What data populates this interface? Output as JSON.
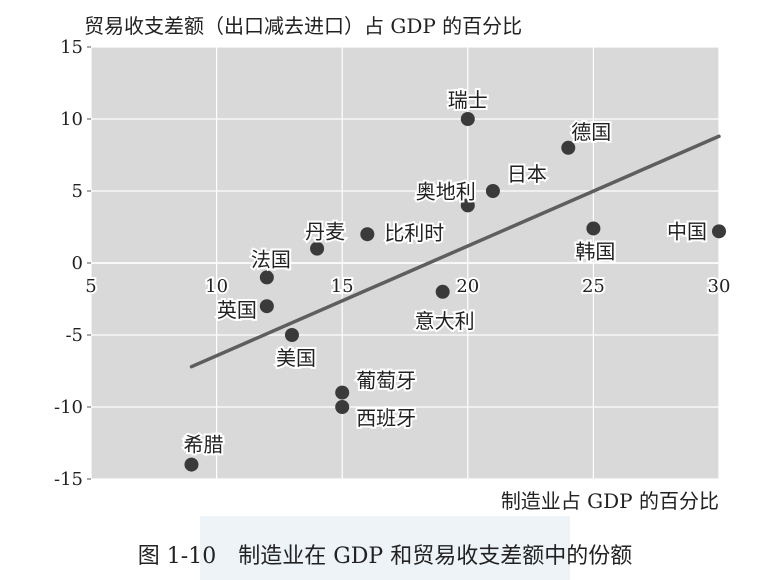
{
  "chart_data": {
    "type": "scatter",
    "title": "",
    "ylabel": "贸易收支差额（出口减去进口）占 GDP 的百分比",
    "xlabel": "制造业占 GDP 的百分比",
    "xlim": [
      5,
      30
    ],
    "ylim": [
      -15,
      15
    ],
    "xticks": [
      "5",
      "10",
      "15",
      "20",
      "25",
      "30"
    ],
    "yticks": [
      "15",
      "10",
      "5",
      "0",
      "-5",
      "-10",
      "-15"
    ],
    "grid": true,
    "points": [
      {
        "label": "瑞士",
        "x": 20,
        "y": 10
      },
      {
        "label": "德国",
        "x": 24,
        "y": 8
      },
      {
        "label": "日本",
        "x": 21,
        "y": 5
      },
      {
        "label": "奥地利",
        "x": 20,
        "y": 4
      },
      {
        "label": "丹麦",
        "x": 14,
        "y": 1
      },
      {
        "label": "比利时",
        "x": 16,
        "y": 2
      },
      {
        "label": "法国",
        "x": 12,
        "y": -1
      },
      {
        "label": "韩国",
        "x": 25,
        "y": 2.4
      },
      {
        "label": "中国",
        "x": 30,
        "y": 2.2
      },
      {
        "label": "意大利",
        "x": 19,
        "y": -2
      },
      {
        "label": "英国",
        "x": 12,
        "y": -3
      },
      {
        "label": "美国",
        "x": 13,
        "y": -5
      },
      {
        "label": "葡萄牙",
        "x": 15,
        "y": -9
      },
      {
        "label": "西班牙",
        "x": 15,
        "y": -10
      },
      {
        "label": "希腊",
        "x": 9,
        "y": -14
      }
    ],
    "trendline": {
      "x1": 9,
      "y1": -7.2,
      "x2": 30,
      "y2": 8.8
    },
    "colors": {
      "plot_bg": "#d9d9d9",
      "grid": "#ffffff",
      "point": "#3a3a3a",
      "trend": "#5e5e5e",
      "text": "#222222"
    }
  },
  "caption": "图 1-10　制造业在 GDP 和贸易收支差额中的份额"
}
